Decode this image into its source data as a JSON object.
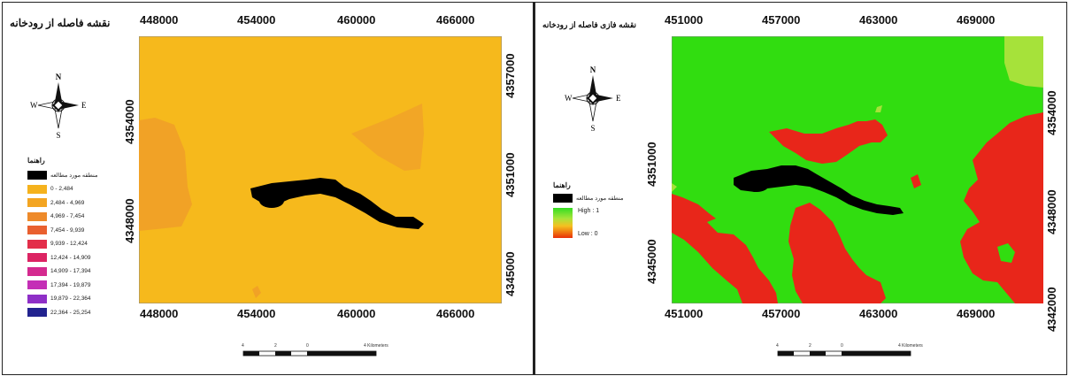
{
  "left_map": {
    "title": "نقشه فاصله از رودخانه",
    "x_ticks": [
      "448000",
      "454000",
      "460000",
      "466000"
    ],
    "y_ticks": [
      "4354000",
      "4348000"
    ],
    "y_ticks_right": [
      "4357000",
      "4351000",
      "4345000"
    ],
    "legend": {
      "title": "راهنما",
      "items": [
        {
          "label": "منطقه مورد مطالعه",
          "color": "#000000"
        },
        {
          "label": "0 - 2,484",
          "color": "#f5b21d"
        },
        {
          "label": "2,484 - 4,969",
          "color": "#f3a522"
        },
        {
          "label": "4,969 - 7,454",
          "color": "#ee8a2a"
        },
        {
          "label": "7,454 - 9,939",
          "color": "#e9602f"
        },
        {
          "label": "9,939 - 12,424",
          "color": "#e32e4a"
        },
        {
          "label": "12,424 - 14,909",
          "color": "#dc2463"
        },
        {
          "label": "14,909 - 17,394",
          "color": "#d42a8f"
        },
        {
          "label": "17,394 - 19,879",
          "color": "#c42fb6"
        },
        {
          "label": "19,879 - 22,364",
          "color": "#8e2fc7"
        },
        {
          "label": "22,364 - 25,254",
          "color": "#22238f"
        }
      ]
    },
    "compass": {
      "n": "N",
      "s": "S",
      "e": "E",
      "w": "W"
    },
    "scale": {
      "labels": [
        "4",
        "2",
        "0",
        "4 Kilometers"
      ]
    }
  },
  "right_map": {
    "title": "نقشه فازی فاصله از رودخانه",
    "x_ticks": [
      "451000",
      "457000",
      "463000",
      "469000"
    ],
    "y_ticks": [
      "4351000",
      "4345000"
    ],
    "y_ticks_right": [
      "4354000",
      "4348000",
      "4342000"
    ],
    "legend": {
      "title": "راهنما",
      "study_area": "منطقه مورد مطالعه",
      "high": "High : 1",
      "low": "Low : 0"
    },
    "compass": {
      "n": "N",
      "s": "S",
      "e": "E",
      "w": "W"
    },
    "scale": {
      "labels": [
        "4",
        "2",
        "0",
        "4 Kilometers"
      ]
    }
  },
  "colors": {
    "distance_base": "#f6b91c",
    "distance_band2": "#f0a024",
    "fuzzy_high": "#31dd10",
    "fuzzy_low": "#e8261a",
    "fuzzy_mid": "#a6e23a",
    "study_area": "#000000"
  }
}
